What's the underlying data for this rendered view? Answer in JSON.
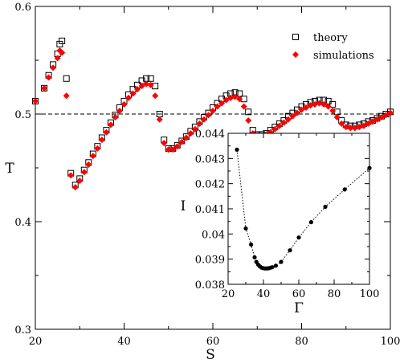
{
  "chart_data": [
    {
      "type": "scatter",
      "xlabel": "S",
      "ylabel": "T",
      "xlim": [
        20,
        100
      ],
      "ylim": [
        0.3,
        0.6
      ],
      "xticks": [
        20,
        40,
        60,
        80,
        100
      ],
      "yticks": [
        0.3,
        0.4,
        0.5,
        0.6
      ],
      "reference_line": {
        "y": 0.5,
        "style": "dashed"
      },
      "legend": {
        "placement": "top-right"
      },
      "series": [
        {
          "name": "theory",
          "marker": "open-square",
          "color": "#000000",
          "x": [
            20,
            22,
            23,
            24,
            25,
            25.5,
            26,
            27,
            28,
            29,
            30,
            31,
            32,
            33,
            34,
            35,
            36,
            37,
            38,
            39,
            40,
            41,
            42,
            43,
            44,
            45,
            46,
            47,
            48,
            49,
            50,
            51,
            52,
            53,
            54,
            55,
            56,
            57,
            58,
            59,
            60,
            61,
            62,
            63,
            64,
            65,
            66,
            67,
            68,
            69,
            70,
            71,
            72,
            73,
            74,
            75,
            76,
            77,
            78,
            79,
            80,
            81,
            82,
            83,
            84,
            85,
            86,
            87,
            88,
            89,
            90,
            91,
            92,
            93,
            94,
            95,
            96,
            97,
            98,
            99,
            100
          ],
          "y": [
            0.512,
            0.524,
            0.536,
            0.546,
            0.556,
            0.565,
            0.568,
            0.533,
            0.445,
            0.434,
            0.44,
            0.448,
            0.455,
            0.463,
            0.47,
            0.478,
            0.485,
            0.492,
            0.499,
            0.506,
            0.512,
            0.518,
            0.523,
            0.527,
            0.531,
            0.533,
            0.533,
            0.526,
            0.5,
            0.476,
            0.468,
            0.468,
            0.471,
            0.475,
            0.479,
            0.484,
            0.488,
            0.493,
            0.497,
            0.501,
            0.506,
            0.51,
            0.514,
            0.517,
            0.519,
            0.52,
            0.519,
            0.514,
            0.502,
            0.485,
            0.481,
            0.481,
            0.482,
            0.485,
            0.488,
            0.491,
            0.494,
            0.498,
            0.501,
            0.504,
            0.507,
            0.509,
            0.511,
            0.512,
            0.513,
            0.513,
            0.512,
            0.509,
            0.502,
            0.494,
            0.49,
            0.489,
            0.489,
            0.49,
            0.491,
            0.493,
            0.494,
            0.496,
            0.498,
            0.5,
            0.502
          ]
        },
        {
          "name": "simulations",
          "marker": "filled-diamond",
          "color": "#ff0000",
          "x": [
            20,
            22,
            23,
            24,
            25,
            25.5,
            26,
            27,
            28,
            29,
            30,
            31,
            32,
            33,
            34,
            35,
            36,
            37,
            38,
            39,
            40,
            41,
            42,
            43,
            44,
            45,
            46,
            47,
            48,
            49,
            50,
            51,
            52,
            53,
            54,
            55,
            56,
            57,
            58,
            59,
            60,
            61,
            62,
            63,
            64,
            65,
            66,
            67,
            68,
            69,
            70,
            71,
            72,
            73,
            74,
            75,
            76,
            77,
            78,
            79,
            80,
            81,
            82,
            83,
            84,
            85,
            86,
            87,
            88,
            89,
            90,
            91,
            92,
            93,
            94,
            95,
            96,
            97,
            98,
            99,
            100
          ],
          "y": [
            0.512,
            0.524,
            0.534,
            0.543,
            0.552,
            0.559,
            0.557,
            0.517,
            0.443,
            0.432,
            0.438,
            0.446,
            0.453,
            0.461,
            0.468,
            0.476,
            0.483,
            0.49,
            0.497,
            0.503,
            0.509,
            0.515,
            0.519,
            0.523,
            0.526,
            0.528,
            0.527,
            0.517,
            0.495,
            0.473,
            0.467,
            0.467,
            0.47,
            0.474,
            0.478,
            0.482,
            0.486,
            0.491,
            0.495,
            0.499,
            0.503,
            0.507,
            0.51,
            0.513,
            0.515,
            0.516,
            0.514,
            0.507,
            0.494,
            0.482,
            0.48,
            0.48,
            0.481,
            0.483,
            0.486,
            0.489,
            0.492,
            0.495,
            0.498,
            0.501,
            0.504,
            0.506,
            0.508,
            0.509,
            0.51,
            0.509,
            0.507,
            0.503,
            0.497,
            0.491,
            0.488,
            0.487,
            0.487,
            0.488,
            0.489,
            0.491,
            0.493,
            0.495,
            0.497,
            0.499,
            0.501
          ]
        }
      ]
    },
    {
      "type": "line",
      "xlabel": "Γ",
      "ylabel": "I",
      "xlim": [
        20,
        100
      ],
      "ylim": [
        0.038,
        0.044
      ],
      "xticks": [
        20,
        40,
        60,
        80,
        100
      ],
      "yticks": [
        0.038,
        0.039,
        0.04,
        0.041,
        0.042,
        0.043,
        0.044
      ],
      "line_style": "dotted",
      "marker": "filled-circle",
      "series": [
        {
          "x": [
            25,
            30,
            33,
            35,
            36,
            37,
            38,
            39,
            40,
            41,
            42,
            43,
            44,
            45,
            47,
            50,
            55,
            60,
            67,
            75,
            86,
            100
          ],
          "y": [
            0.04335,
            0.04022,
            0.03958,
            0.03907,
            0.03889,
            0.03878,
            0.03871,
            0.03866,
            0.03864,
            0.03863,
            0.03863,
            0.03864,
            0.03866,
            0.03868,
            0.03874,
            0.03889,
            0.03935,
            0.03986,
            0.04047,
            0.04108,
            0.04177,
            0.04262
          ]
        }
      ]
    }
  ]
}
